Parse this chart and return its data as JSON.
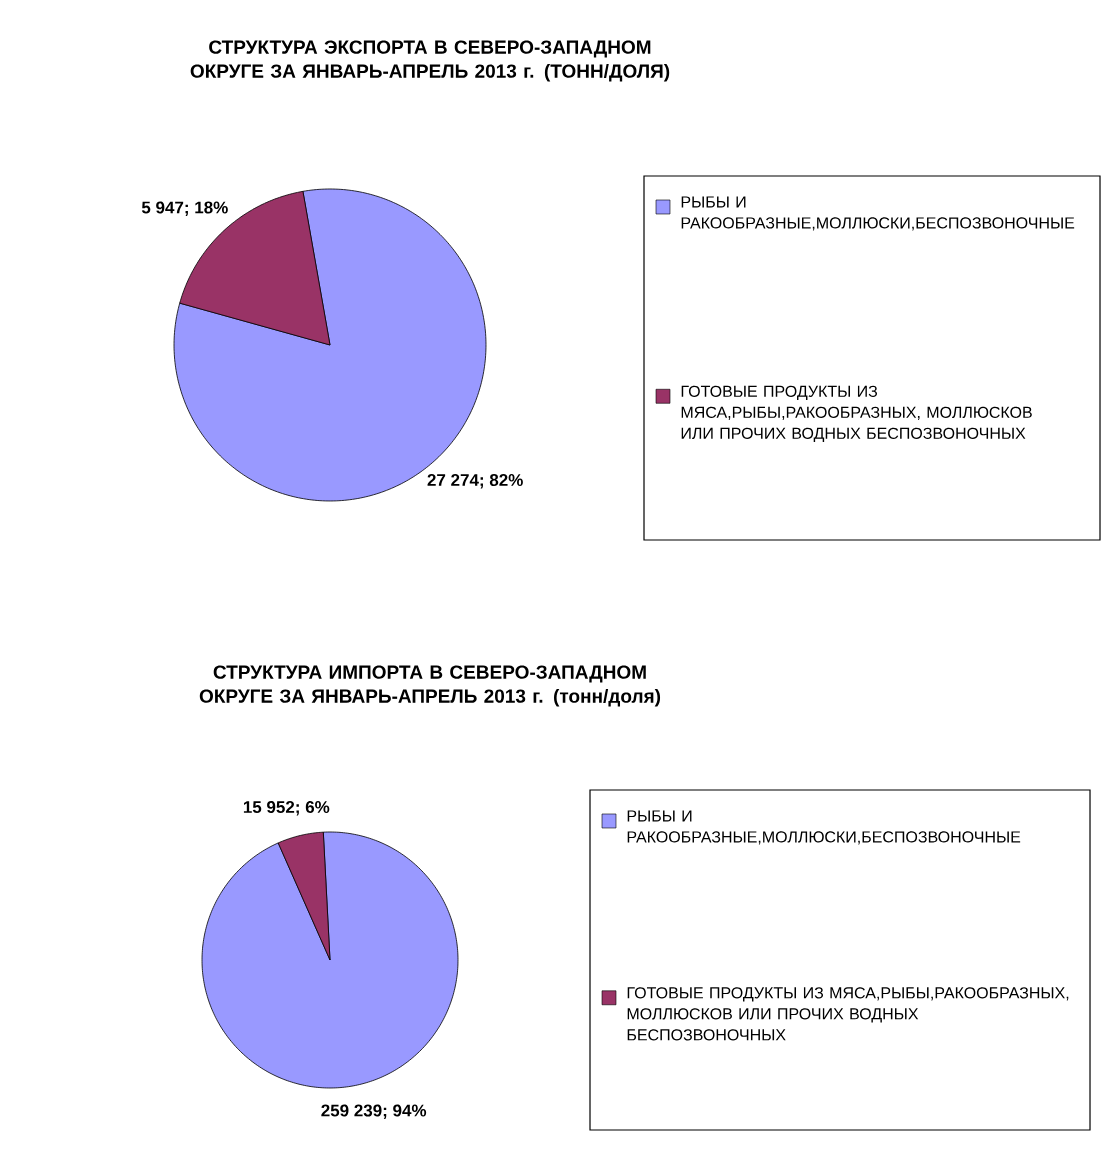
{
  "chart_data": [
    {
      "type": "pie",
      "title": "СТРУКТУРА ЭКСПОРТА В СЕВЕРО-ЗАПАДНОМ ОКРУГЕ ЗА ЯНВАРЬ-АПРЕЛЬ 2013 г. (ТОНН/ДОЛЯ)",
      "categories": [
        "РЫБЫ И РАКООБРАЗНЫЕ,МОЛЛЮСКИ,БЕСПОЗВОНОЧНЫЕ",
        "ГОТОВЫЕ ПРОДУКТЫ ИЗ МЯСА,РЫБЫ,РАКООБРАЗНЫХ, МОЛЛЮСКОВ ИЛИ ПРОЧИХ ВОДНЫХ БЕСПОЗВОНОЧНЫХ"
      ],
      "values": [
        27274,
        5947
      ],
      "value_labels": [
        "27 274; 82%",
        "5 947; 18%"
      ],
      "colors": [
        "#9999ff",
        "#993366"
      ],
      "legend": "right"
    },
    {
      "type": "pie",
      "title": "СТРУКТУРА ИМПОРТА В СЕВЕРО-ЗАПАДНОМ ОКРУГЕ ЗА ЯНВАРЬ-АПРЕЛЬ 2013 г. (тонн/доля)",
      "categories": [
        "РЫБЫ И РАКООБРАЗНЫЕ,МОЛЛЮСКИ,БЕСПОЗВОНОЧНЫЕ",
        "ГОТОВЫЕ ПРОДУКТЫ ИЗ МЯСА,РЫБЫ,РАКООБРАЗНЫХ, МОЛЛЮСКОВ ИЛИ ПРОЧИХ ВОДНЫХ БЕСПОЗВОНОЧНЫХ"
      ],
      "values": [
        259239,
        15952
      ],
      "value_labels": [
        "259 239; 94%",
        "15 952; 6%"
      ],
      "colors": [
        "#9999ff",
        "#993366"
      ],
      "legend": "right"
    }
  ]
}
